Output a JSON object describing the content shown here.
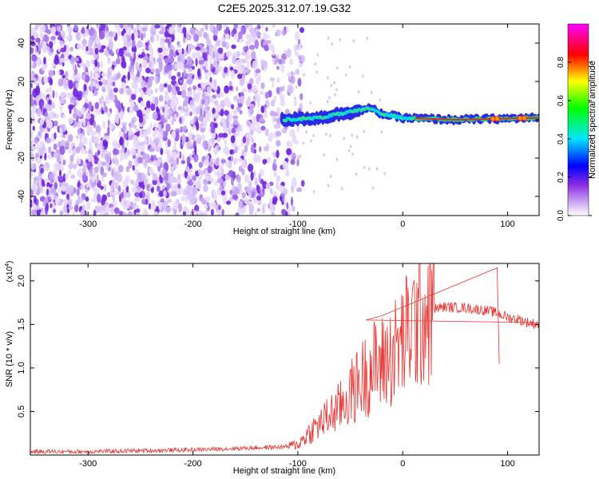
{
  "title": "C2E5.2025.312.07.19.G32",
  "chart_data": [
    {
      "type": "heatmap",
      "title": "C2E5.2025.312.07.19.G32",
      "xlabel": "Height of straight line (km)",
      "ylabel": "Frequency (Hz)",
      "xlim": [
        -355,
        130
      ],
      "ylim": [
        -50,
        50
      ],
      "xticks": [
        -300,
        -200,
        -100,
        0,
        100
      ],
      "xtick_labels": [
        "-300",
        "-200",
        "-100",
        "0",
        "100"
      ],
      "yticks": [
        -40,
        -20,
        0,
        20,
        40
      ],
      "ytick_labels": [
        "-40",
        "-20",
        "0",
        "20",
        "40"
      ],
      "colorbar": {
        "label": "Normalized spectral amplitude",
        "range": [
          0,
          1
        ],
        "ticks": [
          0.0,
          0.2,
          0.4,
          0.6,
          0.8
        ],
        "tick_labels": [
          "0.0",
          "0.2",
          "0.4",
          "0.6",
          "0.8"
        ],
        "colors": [
          "#ffffff",
          "#8a2be2",
          "#0000ff",
          "#00e5ff",
          "#00ff00",
          "#ffff00",
          "#ff0000",
          "#ff00ff"
        ]
      },
      "description_regions": {
        "noise_region_x": [
          -355,
          -105
        ],
        "signal_trace_x": [
          -115,
          130
        ],
        "signal_frequency_hz": [
          {
            "x": -115,
            "y": 0
          },
          {
            "x": -80,
            "y": 1
          },
          {
            "x": -50,
            "y": 4
          },
          {
            "x": -30,
            "y": 6
          },
          {
            "x": -20,
            "y": 3
          },
          {
            "x": 0,
            "y": 1
          },
          {
            "x": 50,
            "y": 0
          },
          {
            "x": 130,
            "y": 1
          }
        ]
      }
    },
    {
      "type": "line",
      "xlabel": "Height of straight line (km)",
      "ylabel": "SNR (10 * v/v)",
      "multiplier_label": "(x10",
      "multiplier_exp": "4",
      "xlim": [
        -355,
        130
      ],
      "ylim": [
        0,
        2.2
      ],
      "xticks": [
        -300,
        -200,
        -100,
        0,
        100
      ],
      "xtick_labels": [
        "-300",
        "-200",
        "-100",
        "0",
        "100"
      ],
      "yticks": [
        0.5,
        1.0,
        1.5,
        2.0
      ],
      "ytick_labels": [
        "0.5",
        "1.0",
        "1.5",
        "2.0"
      ],
      "line_color": "#e8302d",
      "series": [
        {
          "name": "SNR",
          "x": [
            -355,
            -300,
            -250,
            -200,
            -150,
            -120,
            -110,
            -100,
            -90,
            -80,
            -70,
            -60,
            -50,
            -40,
            -30,
            -20,
            -10,
            0,
            10,
            20,
            30,
            40,
            60,
            80,
            90,
            100,
            110,
            120,
            130
          ],
          "values": [
            0.04,
            0.04,
            0.05,
            0.06,
            0.08,
            0.09,
            0.1,
            0.12,
            0.25,
            0.35,
            0.45,
            0.55,
            0.7,
            0.85,
            1.0,
            1.05,
            1.15,
            1.3,
            1.5,
            1.62,
            1.68,
            1.7,
            1.69,
            1.66,
            1.63,
            1.58,
            1.56,
            1.52,
            1.5
          ]
        }
      ],
      "spikes": [
        {
          "x": -35,
          "value": 1.55
        },
        {
          "x": -20,
          "value": 1.6
        },
        {
          "x": 90,
          "value": 2.15
        },
        {
          "x": 92,
          "value": 1.05
        }
      ]
    }
  ]
}
